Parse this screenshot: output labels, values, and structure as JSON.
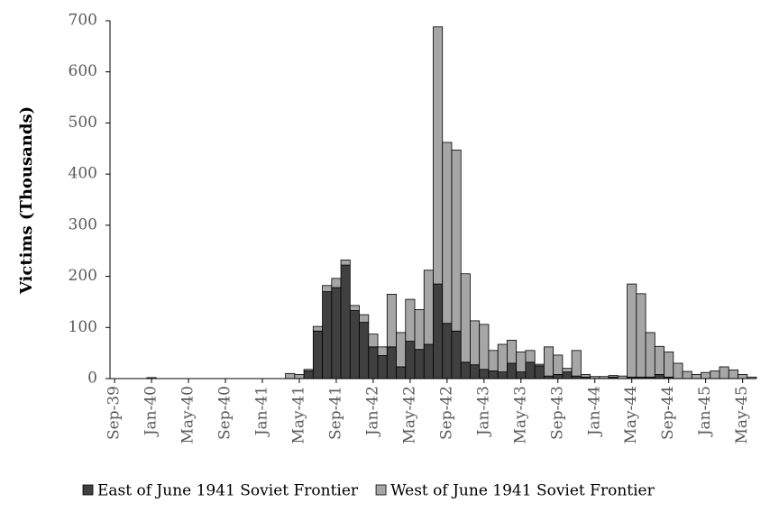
{
  "chart_data": {
    "type": "stacked_bar",
    "y_label": "Victims (Thousands)",
    "categories": [
      "Sep-39",
      null,
      null,
      null,
      "Jan-40",
      null,
      null,
      null,
      "May-40",
      null,
      null,
      null,
      "Sep-40",
      null,
      null,
      null,
      "Jan-41",
      null,
      null,
      null,
      "May-41",
      null,
      null,
      null,
      "Sep-41",
      null,
      null,
      null,
      "Jan-42",
      null,
      null,
      null,
      "May-42",
      null,
      null,
      null,
      "Sep-42",
      null,
      null,
      null,
      "Jan-43",
      null,
      null,
      null,
      "May-43",
      null,
      null,
      null,
      "Sep-43",
      null,
      null,
      null,
      "Jan-44",
      null,
      null,
      null,
      "May-44",
      null,
      null,
      null,
      "Sep-44",
      null,
      null,
      null,
      "Jan-45",
      null,
      null,
      null,
      "May-45",
      null
    ],
    "series": [
      {
        "name": "East of June 1941 Soviet Frontier",
        "color": "#404040",
        "values": [
          0,
          0,
          0,
          0,
          0,
          0,
          0,
          0,
          0,
          0,
          0,
          0,
          0,
          0,
          0,
          0,
          0,
          0,
          0,
          0,
          0,
          15,
          93,
          170,
          178,
          222,
          133,
          110,
          62,
          45,
          62,
          23,
          73,
          57,
          67,
          185,
          108,
          93,
          32,
          27,
          18,
          15,
          13,
          30,
          13,
          32,
          25,
          5,
          8,
          13,
          5,
          3,
          0,
          0,
          3,
          0,
          3,
          3,
          3,
          8,
          3,
          0,
          0,
          0,
          0,
          0,
          0,
          0,
          0,
          0
        ]
      },
      {
        "name": "West of June 1941 Soviet Frontier",
        "color": "#a6a6a6",
        "values": [
          0,
          0,
          0,
          0,
          2,
          0,
          0,
          0,
          0,
          0,
          0,
          0,
          0,
          0,
          0,
          0,
          0,
          0,
          0,
          10,
          8,
          3,
          9,
          12,
          18,
          10,
          10,
          15,
          25,
          17,
          103,
          67,
          82,
          78,
          145,
          503,
          354,
          354,
          173,
          86,
          88,
          40,
          54,
          45,
          39,
          23,
          3,
          57,
          38,
          7,
          50,
          5,
          4,
          4,
          3,
          5,
          182,
          163,
          87,
          55,
          49,
          30,
          14,
          8,
          12,
          15,
          23,
          17,
          8,
          3
        ]
      }
    ],
    "ylim": [
      0,
      700
    ],
    "yticks": [
      0,
      100,
      200,
      300,
      400,
      500,
      600,
      700
    ],
    "legend": "bottom"
  }
}
